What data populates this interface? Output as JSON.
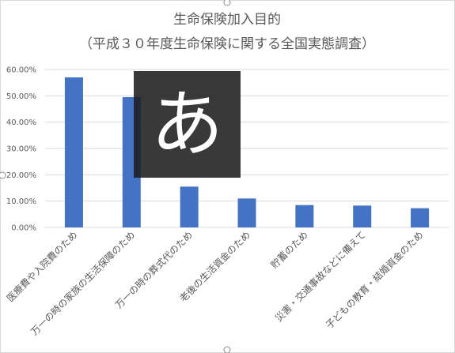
{
  "chart_data": {
    "type": "bar",
    "title": "生命保険加入目的",
    "subtitle": "（平成３０年度生命保険に関する全国実態調査）",
    "categories": [
      "医療費や入院費のため",
      "万一の時の家族の生活保障のため",
      "万一の時の葬式代のため",
      "老後の生活資金のため",
      "貯蓄のため",
      "災害・交通事故などに備えて",
      "子どもの教育・結婚資金のため"
    ],
    "values": [
      57.0,
      49.5,
      15.5,
      11.0,
      8.5,
      8.3,
      7.3
    ],
    "ylim": [
      0,
      60
    ],
    "yticks": [
      0,
      10,
      20,
      30,
      40,
      50,
      60
    ],
    "ytick_labels": [
      "0.00%",
      "10.00%",
      "20.00%",
      "30.00%",
      "40.00%",
      "50.00%",
      "60.00%"
    ],
    "grid": true,
    "bar_color": "#4472c4"
  },
  "overlay": {
    "ime_char": "あ"
  }
}
